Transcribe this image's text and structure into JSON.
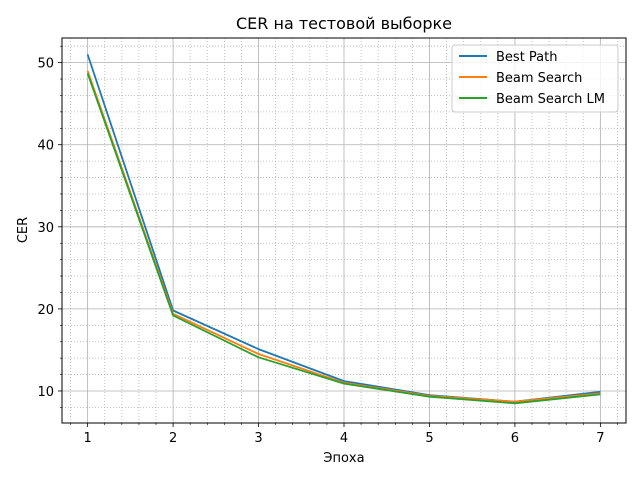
{
  "chart_data": {
    "type": "line",
    "title": "CER на тестовой выборке",
    "xlabel": "Эпоха",
    "ylabel": "CER",
    "x": [
      1,
      2,
      3,
      4,
      5,
      6,
      7
    ],
    "xlim": [
      0.7,
      7.3
    ],
    "ylim": [
      6.1,
      53
    ],
    "xticks": [
      1,
      2,
      3,
      4,
      5,
      6,
      7
    ],
    "yticks": [
      10,
      20,
      30,
      40,
      50
    ],
    "grid": true,
    "legend_position": "top-right",
    "series": [
      {
        "name": "Best Path",
        "color": "#1f77b4",
        "values": [
          51.0,
          19.8,
          15.1,
          11.2,
          9.5,
          8.7,
          9.9
        ]
      },
      {
        "name": "Beam Search",
        "color": "#ff7f0e",
        "values": [
          49.0,
          19.4,
          14.5,
          11.0,
          9.4,
          8.7,
          9.7
        ]
      },
      {
        "name": "Beam Search LM",
        "color": "#2ca02c",
        "values": [
          48.7,
          19.2,
          14.1,
          10.9,
          9.3,
          8.5,
          9.6
        ]
      }
    ]
  }
}
